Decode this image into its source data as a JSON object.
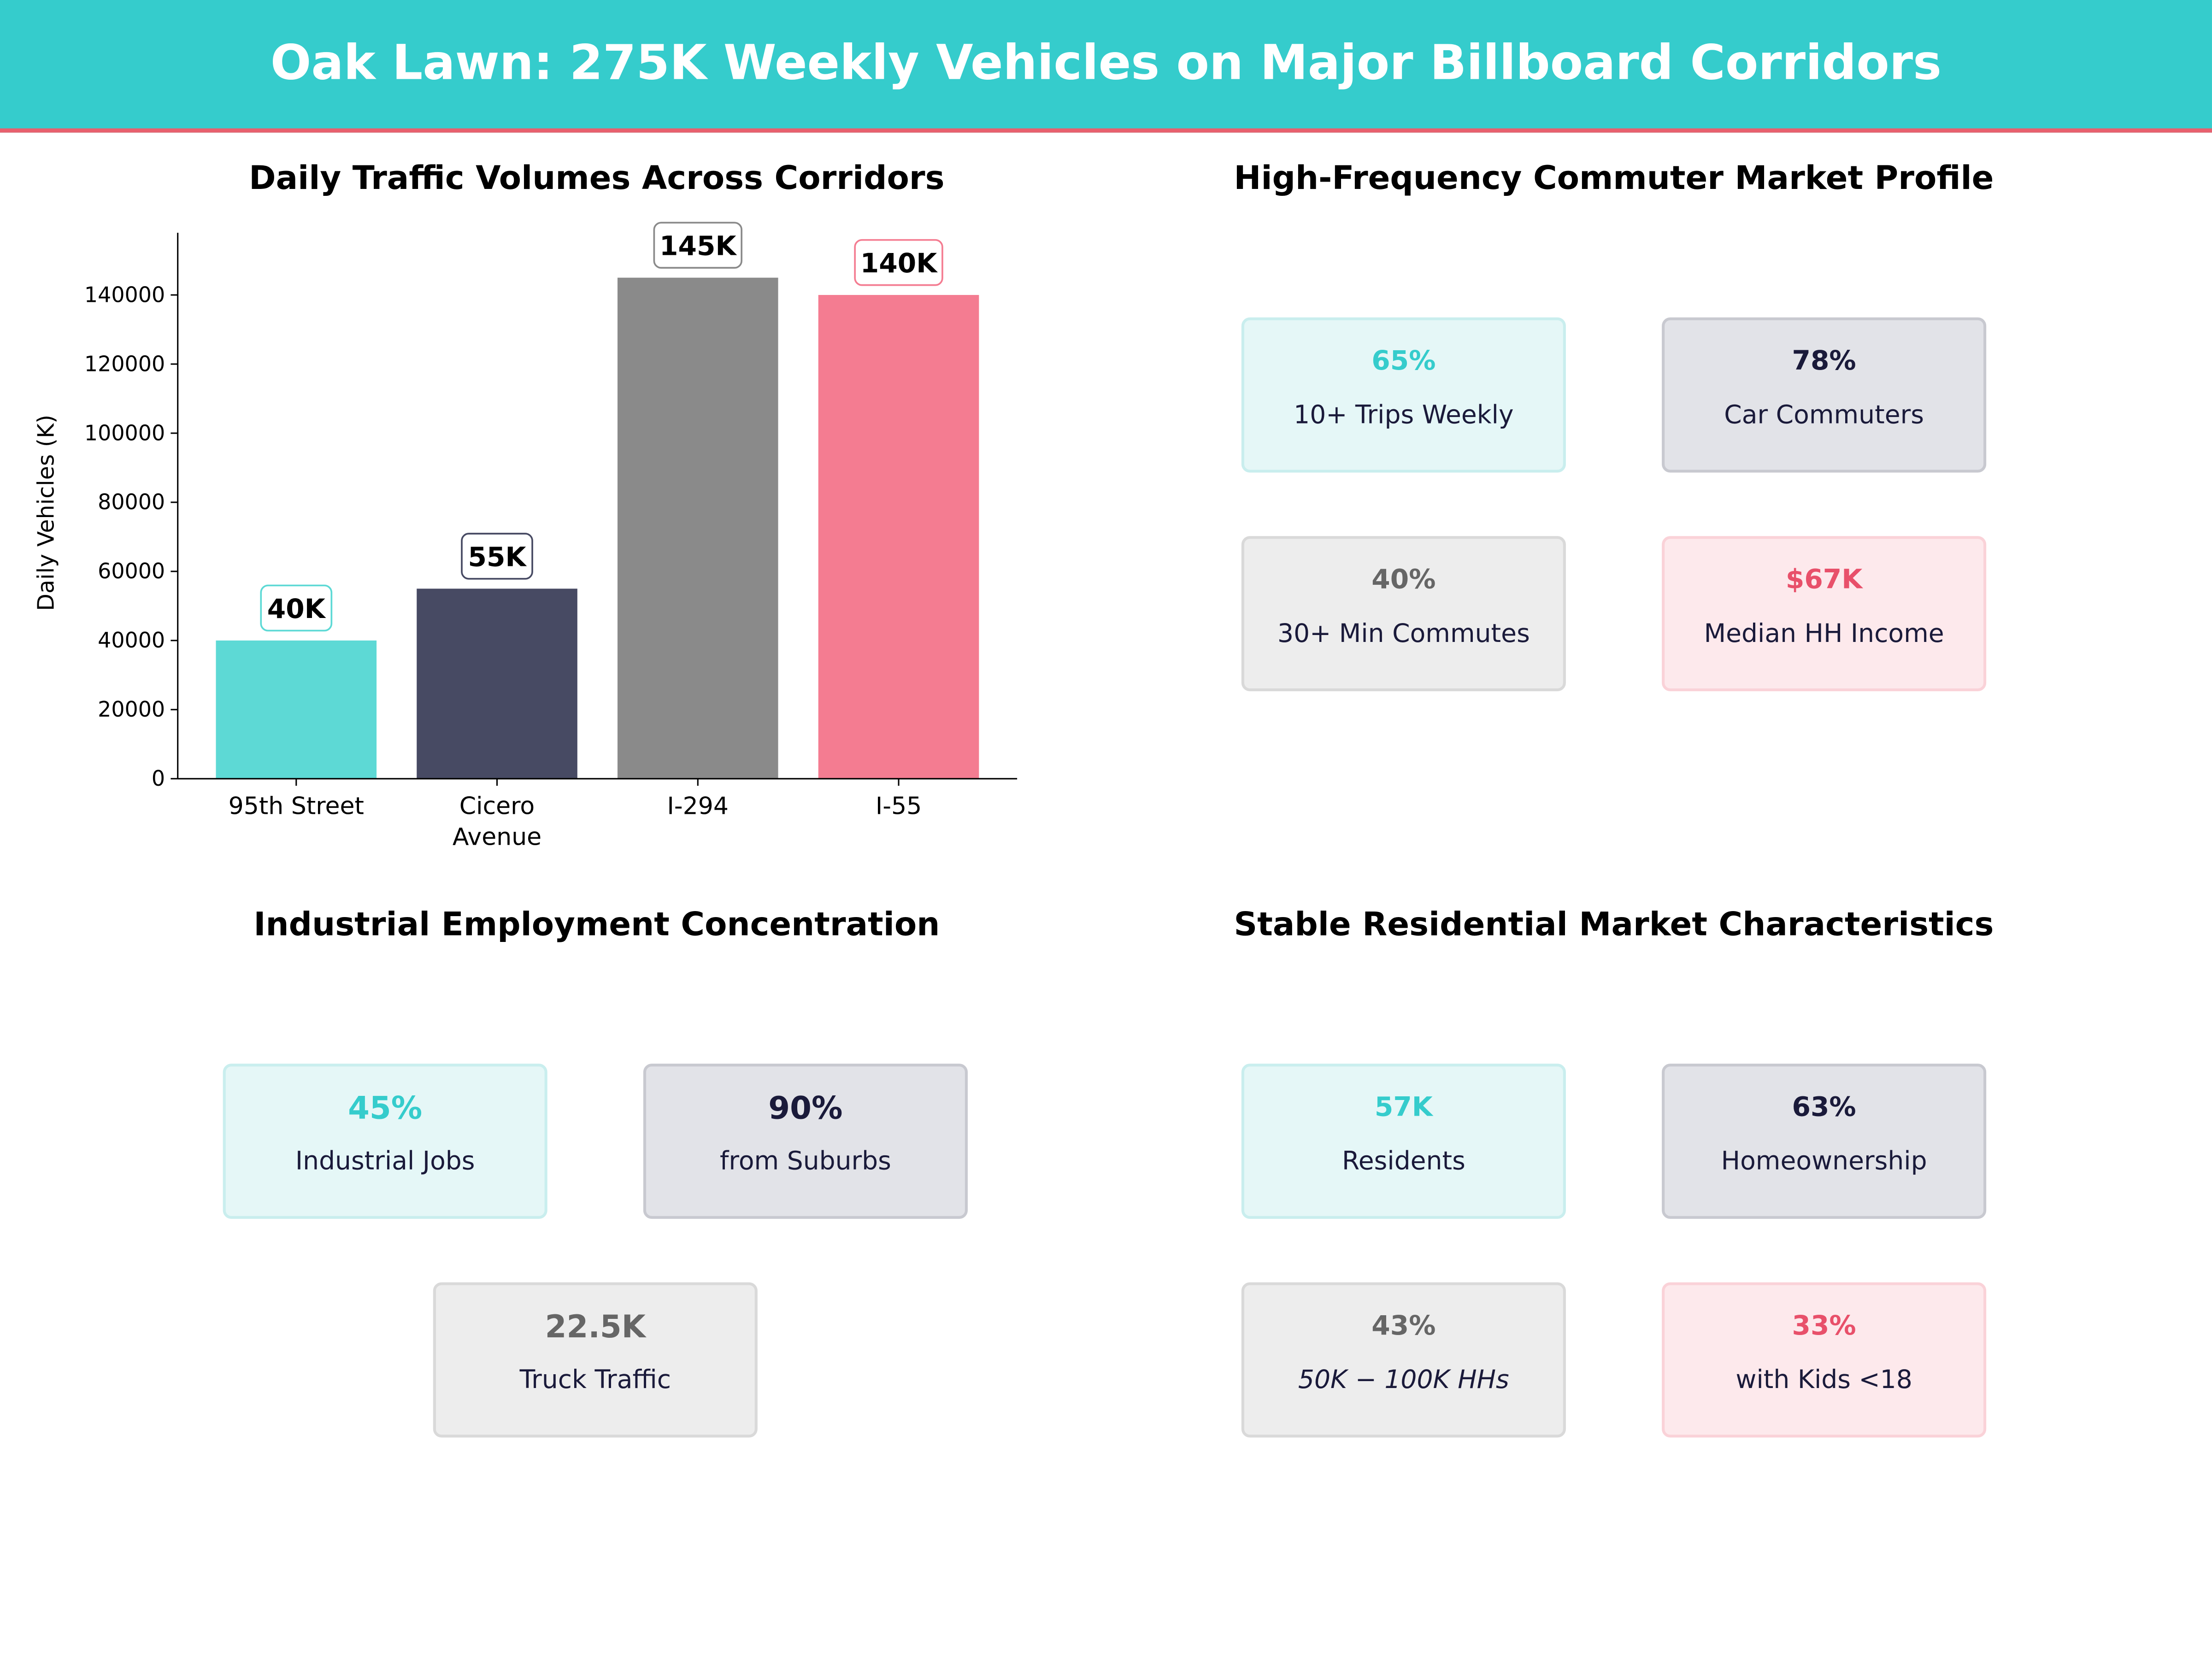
{
  "header": {
    "title": "Oak Lawn: 275K Weekly Vehicles on Major Billboard Corridors"
  },
  "colors": {
    "header": "#35cccc",
    "accent_line": "#e8606e",
    "teal": "#35cccc",
    "navy": "#1a1a3a",
    "gray": "#666666",
    "pink": "#e8506a"
  },
  "chart_data": {
    "type": "bar",
    "title": "Daily Traffic Volumes Across Corridors",
    "xlabel": "",
    "ylabel": "Daily Vehicles (K)",
    "categories": [
      "95th Street",
      "Cicero\nAvenue",
      "I-294",
      "I-55"
    ],
    "values": [
      40000,
      55000,
      145000,
      140000
    ],
    "data_labels": [
      "40K",
      "55K",
      "145K",
      "140K"
    ],
    "bar_colors": [
      "#5dd9d5",
      "#474a63",
      "#8a8a8a",
      "#f47c91"
    ],
    "label_border_colors": [
      "#5dd9d5",
      "#474a63",
      "#8a8a8a",
      "#f47c91"
    ],
    "yticks": [
      "0",
      "20000",
      "40000",
      "60000",
      "80000",
      "100000",
      "120000",
      "140000"
    ],
    "ylim": [
      0,
      158000
    ],
    "grid": false
  },
  "commuter": {
    "title": "High-Frequency Commuter Market Profile",
    "cards": [
      {
        "value": "65%",
        "label": "10+ Trips Weekly"
      },
      {
        "value": "78%",
        "label": "Car Commuters"
      },
      {
        "value": "40%",
        "label": "30+ Min Commutes"
      },
      {
        "value": "$67K",
        "label": "Median HH Income"
      }
    ]
  },
  "industrial": {
    "title": "Industrial Employment Concentration",
    "cards": [
      {
        "value": "45%",
        "label": "Industrial Jobs"
      },
      {
        "value": "90%",
        "label": "from Suburbs"
      },
      {
        "value": "22.5K",
        "label": "Truck Traffic"
      }
    ]
  },
  "residential": {
    "title": "Stable Residential Market Characteristics",
    "cards": [
      {
        "value": "57K",
        "label": "Residents"
      },
      {
        "value": "63%",
        "label": "Homeownership"
      },
      {
        "value": "43%",
        "label": "50K − 100K HHs"
      },
      {
        "value": "33%",
        "label": "with Kids <18"
      }
    ]
  }
}
